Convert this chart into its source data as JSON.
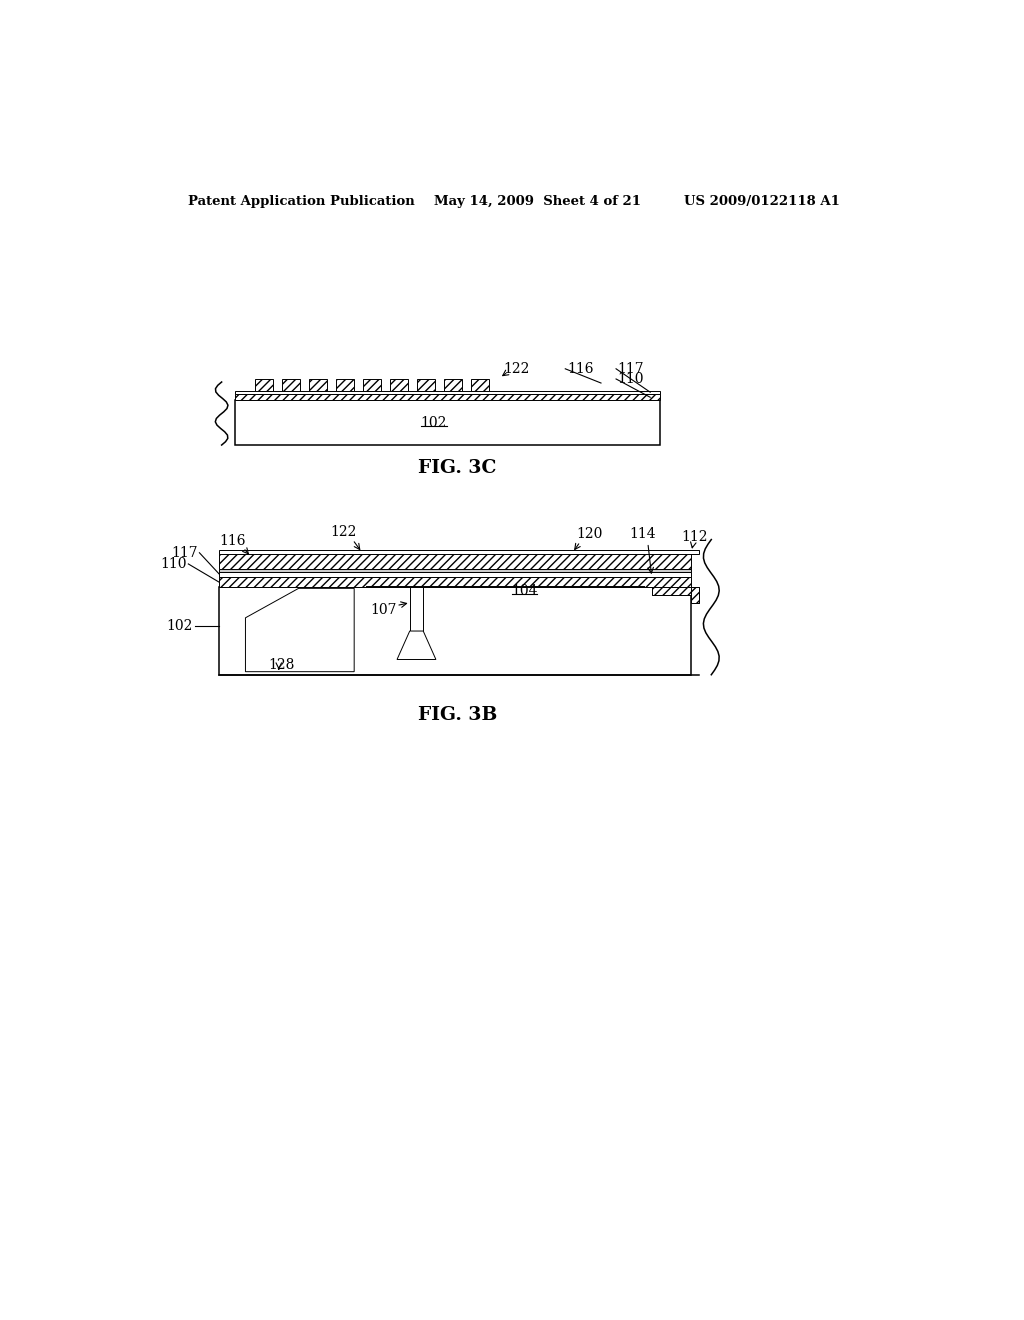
{
  "bg_color": "#ffffff",
  "header_left": "Patent Application Publication",
  "header_mid": "May 14, 2009  Sheet 4 of 21",
  "header_right": "US 2009/0122118 A1",
  "fig3b_label": "FIG. 3B",
  "fig3c_label": "FIG. 3C"
}
